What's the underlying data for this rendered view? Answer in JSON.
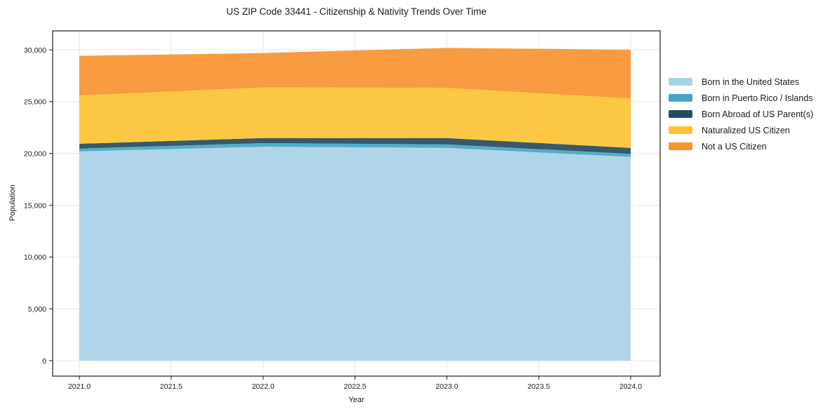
{
  "title": "US ZIP Code 33441 - Citizenship & Nativity Trends Over Time",
  "chart_data": {
    "type": "area",
    "stacked": true,
    "title": "US ZIP Code 33441 - Citizenship & Nativity Trends Over Time",
    "xlabel": "Year",
    "ylabel": "Population",
    "x": [
      2021,
      2022,
      2023,
      2024
    ],
    "series": [
      {
        "name": "Born in the United States",
        "color": "#a8d3e6",
        "values": [
          20200,
          20650,
          20530,
          19660
        ]
      },
      {
        "name": "Born in Puerto Rico / Islands",
        "color": "#45a6c3",
        "values": [
          270,
          340,
          340,
          300
        ]
      },
      {
        "name": "Born Abroad of US Parent(s)",
        "color": "#264b5d",
        "values": [
          460,
          490,
          610,
          570
        ]
      },
      {
        "name": "Naturalized US Citizen",
        "color": "#fcc233",
        "values": [
          4670,
          4890,
          4850,
          4770
        ]
      },
      {
        "name": "Not a US Citizen",
        "color": "#f79331",
        "values": [
          3820,
          3320,
          3860,
          4710
        ]
      }
    ],
    "x_ticks": [
      "2021.0",
      "2021.5",
      "2022.0",
      "2022.5",
      "2023.0",
      "2023.5",
      "2024.0"
    ],
    "x_tick_values": [
      2021,
      2021.5,
      2022,
      2022.5,
      2023,
      2023.5,
      2024
    ],
    "y_ticks": [
      "0",
      "5,000",
      "10,000",
      "15,000",
      "20,000",
      "25,000",
      "30,000"
    ],
    "y_tick_values": [
      0,
      5000,
      10000,
      15000,
      20000,
      25000,
      30000
    ],
    "ylim": [
      0,
      30000
    ],
    "grid": true,
    "legend_position": "right-outside",
    "colors": {
      "grid": "#e7e7e7",
      "spine": "#1a1a1a",
      "background": "#ffffff"
    }
  }
}
